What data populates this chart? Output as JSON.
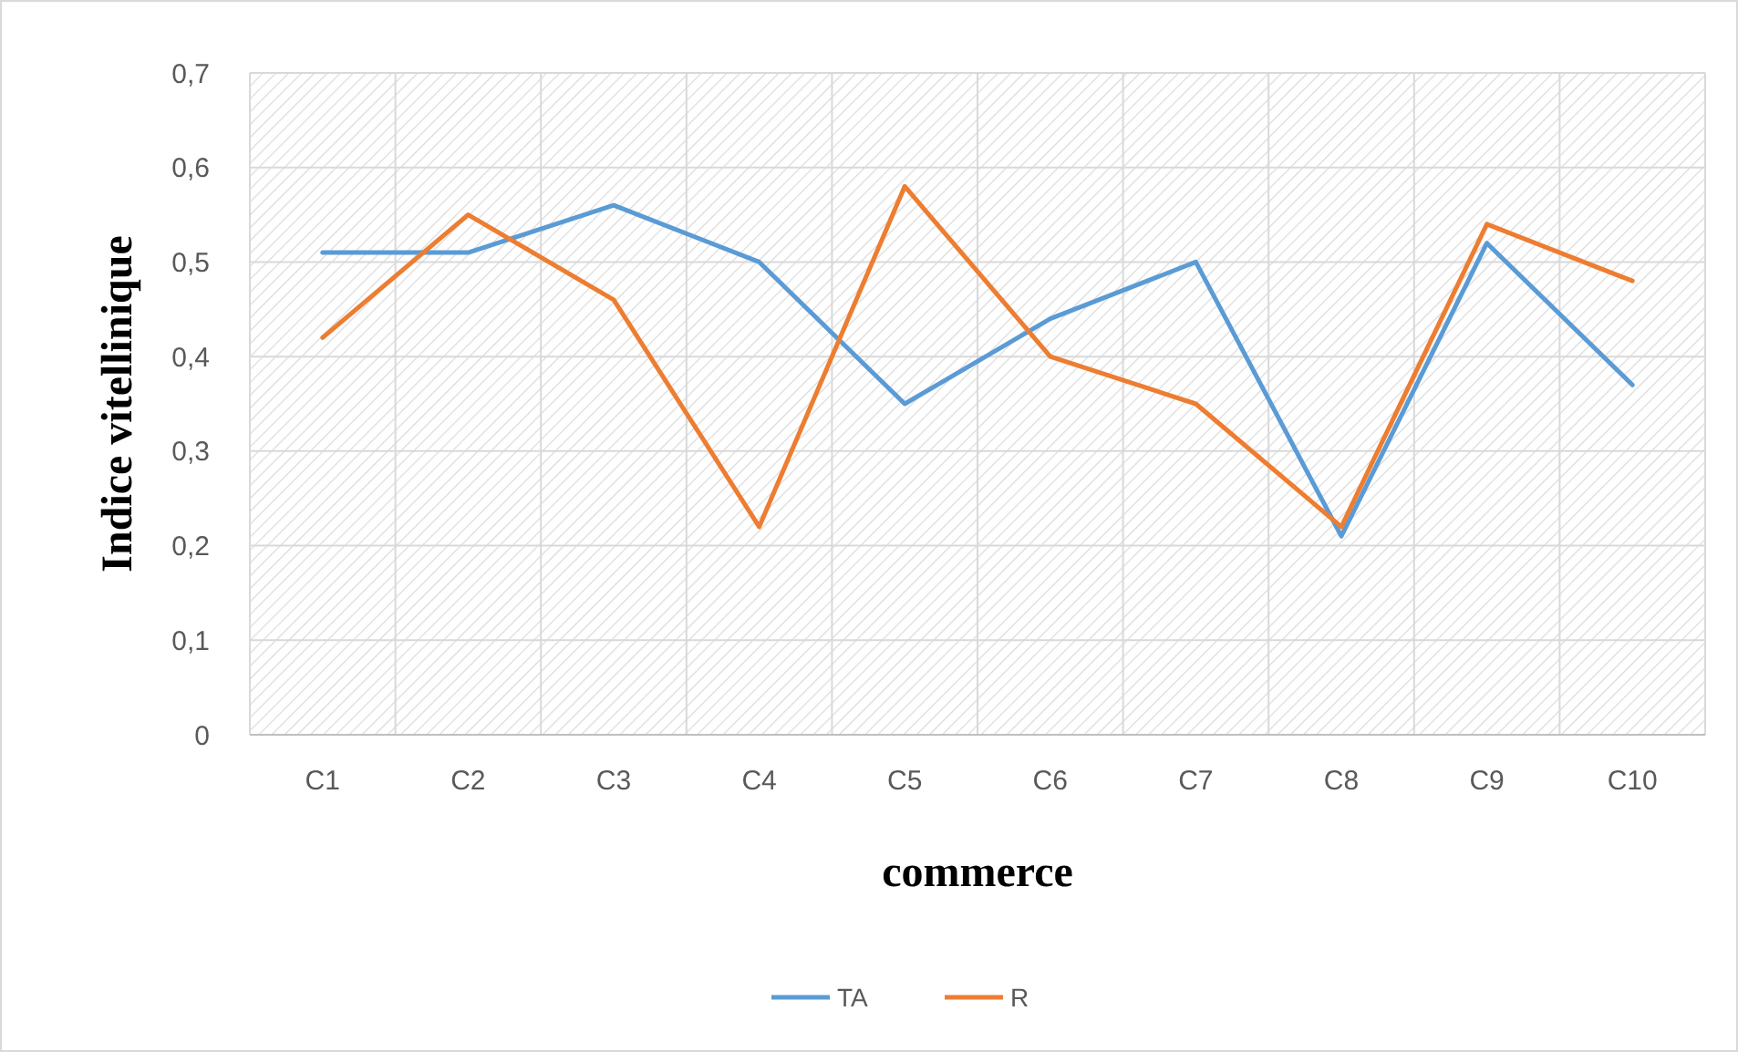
{
  "chart_data": {
    "type": "line",
    "xlabel": "commerce",
    "ylabel": "Indice vitellinique",
    "categories": [
      "C1",
      "C2",
      "C3",
      "C4",
      "C5",
      "C6",
      "C7",
      "C8",
      "C9",
      "C10"
    ],
    "series": [
      {
        "name": "TA",
        "color": "#5b9bd5",
        "values": [
          0.51,
          0.51,
          0.56,
          0.5,
          0.35,
          0.44,
          0.5,
          0.21,
          0.52,
          0.37
        ]
      },
      {
        "name": "R",
        "color": "#ed7d31",
        "values": [
          0.42,
          0.55,
          0.46,
          0.22,
          0.58,
          0.4,
          0.35,
          0.22,
          0.54,
          0.48
        ]
      }
    ],
    "ylim": [
      0,
      0.7
    ],
    "yticks": [
      0,
      {
        "value": 0.1,
        "label": "0,1"
      },
      {
        "value": 0.2,
        "label": "0,2"
      },
      {
        "value": 0.3,
        "label": "0,3"
      },
      {
        "value": 0.4,
        "label": "0,4"
      },
      {
        "value": 0.5,
        "label": "0,5"
      },
      {
        "value": 0.6,
        "label": "0,6"
      },
      {
        "value": 0.7,
        "label": "0,7"
      }
    ],
    "grid": true,
    "legend": "bottom",
    "marker": "none",
    "line_style": "solid"
  }
}
